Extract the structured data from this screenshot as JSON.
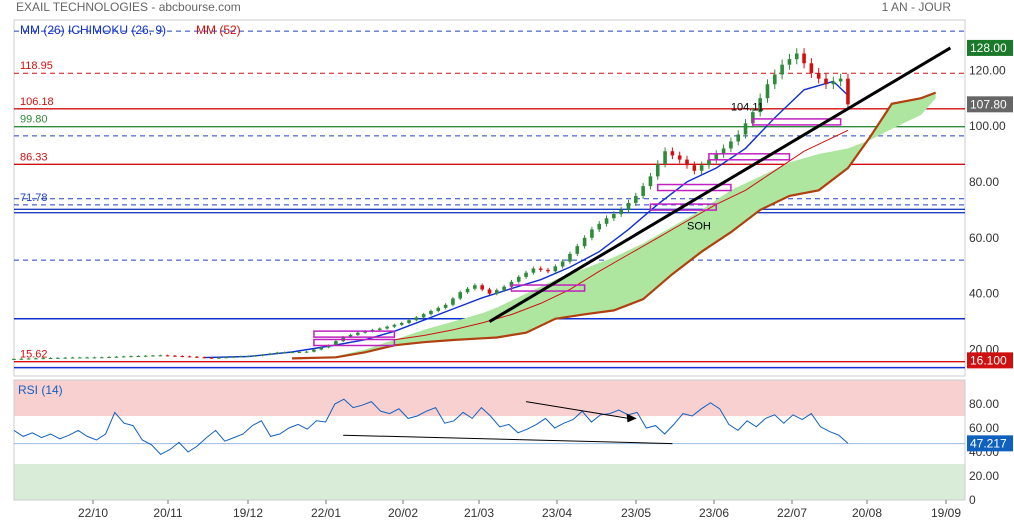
{
  "header": {
    "title": "EXAIL TECHNOLOGIES - abcbourse.com",
    "period": "1 AN - JOUR"
  },
  "colors": {
    "price_up": "#2e8b3a",
    "price_down": "#d01010",
    "ma26": "#1030d0",
    "ma52": "#d01010",
    "tenkan": "#d01010",
    "cloud": "#aee6a0",
    "cloud_edge": "#b04010",
    "rsi": "#1060c0",
    "rsi_over": "#f8d0d0",
    "rsi_under": "#d8ecd8"
  },
  "chart_data": [
    {
      "type": "line",
      "panel": "price",
      "legend": [
        "MM (26)",
        "ICHIMOKU (26, 9)",
        "MM (52)"
      ],
      "y_ticks": [
        "120.00",
        "100.00",
        "80.00",
        "60.00",
        "40.00",
        "20.00"
      ],
      "y_tick_values": [
        120,
        100,
        80,
        60,
        40,
        20
      ],
      "ylim": [
        10.5,
        138
      ],
      "x_ticks": [
        "22/10",
        "20/11",
        "19/12",
        "22/01",
        "20/02",
        "21/03",
        "23/04",
        "23/05",
        "23/06",
        "22/07",
        "20/08",
        "19/09"
      ],
      "close_points": [
        [
          0,
          16.6
        ],
        [
          4,
          16.9
        ],
        [
          8,
          17.1
        ],
        [
          12,
          17.2
        ],
        [
          16,
          17.6
        ],
        [
          20,
          17.9
        ],
        [
          24,
          17.4
        ],
        [
          27,
          16.9
        ],
        [
          30,
          17.4
        ],
        [
          33,
          17.8
        ],
        [
          36,
          18.9
        ],
        [
          40,
          19.2
        ],
        [
          43,
          21.5
        ],
        [
          45,
          24.5
        ],
        [
          47,
          26
        ],
        [
          50,
          27.5
        ],
        [
          53,
          29.5
        ],
        [
          55,
          31.5
        ],
        [
          57,
          33.8
        ],
        [
          59,
          36
        ],
        [
          61,
          40.5
        ],
        [
          63,
          43
        ],
        [
          65,
          40
        ],
        [
          67,
          42.5
        ],
        [
          69,
          46
        ],
        [
          71,
          49
        ],
        [
          73,
          48
        ],
        [
          75,
          51.5
        ],
        [
          77,
          57
        ],
        [
          79,
          63
        ],
        [
          81,
          67
        ],
        [
          83,
          70
        ],
        [
          85,
          75
        ],
        [
          87,
          82
        ],
        [
          89,
          91
        ],
        [
          91,
          88
        ],
        [
          93,
          84
        ],
        [
          95,
          88
        ],
        [
          97,
          92
        ],
        [
          99,
          97
        ],
        [
          101,
          105
        ],
        [
          103,
          115
        ],
        [
          105,
          122
        ],
        [
          107,
          126
        ],
        [
          109,
          119
        ],
        [
          111,
          115
        ],
        [
          113,
          117
        ],
        [
          114,
          107.8
        ]
      ],
      "ma26_points": [
        [
          26,
          17.1
        ],
        [
          32,
          17.5
        ],
        [
          38,
          19.1
        ],
        [
          44,
          21.6
        ],
        [
          48,
          23.5
        ],
        [
          52,
          26.5
        ],
        [
          56,
          30.5
        ],
        [
          60,
          34.5
        ],
        [
          64,
          38.5
        ],
        [
          68,
          41.8
        ],
        [
          72,
          45
        ],
        [
          76,
          49.5
        ],
        [
          80,
          55
        ],
        [
          84,
          63
        ],
        [
          88,
          72
        ],
        [
          92,
          80
        ],
        [
          96,
          85
        ],
        [
          100,
          92
        ],
        [
          104,
          103
        ],
        [
          108,
          113
        ],
        [
          112,
          116
        ],
        [
          114,
          111
        ]
      ],
      "ma52_points": [
        [
          52,
          23.5
        ],
        [
          56,
          25
        ],
        [
          60,
          27
        ],
        [
          64,
          29.5
        ],
        [
          68,
          32.5
        ],
        [
          72,
          36.5
        ],
        [
          76,
          41.5
        ],
        [
          80,
          48
        ],
        [
          84,
          54
        ],
        [
          88,
          60
        ],
        [
          92,
          66
        ],
        [
          96,
          72
        ],
        [
          100,
          77
        ],
        [
          104,
          84
        ],
        [
          108,
          91
        ],
        [
          112,
          96
        ],
        [
          114,
          98.5
        ]
      ],
      "cloud_a": [
        [
          38,
          16.8
        ],
        [
          44,
          17.2
        ],
        [
          48,
          19
        ],
        [
          52,
          21.5
        ],
        [
          56,
          22.6
        ],
        [
          60,
          23.4
        ],
        [
          64,
          24
        ],
        [
          66,
          24.3
        ],
        [
          70,
          26
        ],
        [
          74,
          31
        ],
        [
          78,
          32.6
        ],
        [
          82,
          34
        ],
        [
          86,
          38
        ],
        [
          90,
          47
        ],
        [
          94,
          55
        ],
        [
          98,
          62
        ],
        [
          102,
          70
        ],
        [
          106,
          75
        ],
        [
          110,
          77
        ],
        [
          114,
          85
        ],
        [
          117,
          96
        ],
        [
          120,
          108
        ],
        [
          124,
          110
        ],
        [
          126,
          112
        ]
      ],
      "cloud_b": [
        [
          38,
          16.8
        ],
        [
          44,
          17.6
        ],
        [
          48,
          20
        ],
        [
          52,
          23.5
        ],
        [
          56,
          27
        ],
        [
          60,
          30
        ],
        [
          64,
          33
        ],
        [
          66,
          35
        ],
        [
          70,
          40
        ],
        [
          74,
          45
        ],
        [
          78,
          49
        ],
        [
          82,
          53
        ],
        [
          86,
          58
        ],
        [
          90,
          64
        ],
        [
          94,
          70
        ],
        [
          98,
          77
        ],
        [
          102,
          82
        ],
        [
          106,
          87
        ],
        [
          110,
          90
        ],
        [
          114,
          92
        ],
        [
          117,
          95
        ],
        [
          120,
          99
        ],
        [
          124,
          104
        ],
        [
          126,
          110
        ]
      ],
      "cloud_edge_points": [
        [
          38,
          16.8
        ],
        [
          44,
          17.2
        ],
        [
          48,
          19
        ],
        [
          52,
          21.5
        ],
        [
          56,
          22.6
        ],
        [
          60,
          23.4
        ],
        [
          64,
          24
        ],
        [
          66,
          24.3
        ],
        [
          70,
          26
        ],
        [
          74,
          31
        ],
        [
          78,
          32.6
        ],
        [
          82,
          34
        ],
        [
          86,
          38
        ],
        [
          90,
          47
        ],
        [
          94,
          55
        ],
        [
          98,
          62
        ],
        [
          102,
          70
        ],
        [
          106,
          75
        ],
        [
          110,
          77
        ],
        [
          114,
          85
        ],
        [
          117,
          96
        ],
        [
          120,
          108
        ],
        [
          124,
          110
        ],
        [
          126,
          112
        ]
      ],
      "trendline": [
        [
          65,
          30
        ],
        [
          128,
          128
        ]
      ],
      "levels": [
        {
          "value": 118.95,
          "label": "118.95",
          "color": "#d01010",
          "style": "dashed"
        },
        {
          "value": 106.18,
          "label": "106.18",
          "color": "#d01010",
          "style": "solid"
        },
        {
          "value": 99.8,
          "label": "99.80",
          "color": "#2e8b3a",
          "style": "solid"
        },
        {
          "value": 86.33,
          "label": "86.33",
          "color": "#d01010",
          "style": "solid"
        },
        {
          "value": 71.78,
          "label": "71.78",
          "color": "#2040c0",
          "style": "dashed"
        },
        {
          "value": 15.62,
          "label": "15.62",
          "color": "#d01010",
          "style": "solid"
        }
      ],
      "extra_lines": [
        {
          "value": 134,
          "color": "#2040c0",
          "style": "dashed"
        },
        {
          "value": 96.5,
          "color": "#2040c0",
          "style": "dashed"
        },
        {
          "value": 74,
          "color": "#2040c0",
          "style": "dashed"
        },
        {
          "value": 70.2,
          "color": "#2040c0",
          "style": "solid"
        },
        {
          "value": 69,
          "color": "#2040c0",
          "style": "solid"
        },
        {
          "value": 52,
          "color": "#2040c0",
          "style": "dashed"
        },
        {
          "value": 31,
          "color": "#1030d0",
          "style": "solid"
        },
        {
          "value": 13.5,
          "color": "#1030d0",
          "style": "solid"
        }
      ],
      "annotations": [
        {
          "text": "104.11",
          "x": 98,
          "y": 105.5
        },
        {
          "text": "SOH",
          "x": 92,
          "y": 63
        }
      ],
      "zones": [
        {
          "x0": 41,
          "x1": 52,
          "y": 25.5
        },
        {
          "x0": 41,
          "x1": 52,
          "y": 22.5
        },
        {
          "x0": 68,
          "x1": 78,
          "y": 42
        },
        {
          "x0": 87,
          "x1": 96,
          "y": 71
        },
        {
          "x0": 88,
          "x1": 98,
          "y": 78
        },
        {
          "x0": 95,
          "x1": 106,
          "y": 89
        },
        {
          "x0": 101,
          "x1": 113,
          "y": 101.5
        }
      ],
      "price_tags": [
        {
          "value": 128,
          "label": "128.00",
          "bg": "#1a7a2a"
        },
        {
          "value": 107.8,
          "label": "107.80",
          "bg": "#666666"
        },
        {
          "value": 16.1,
          "label": "16.100",
          "bg": "#d01010"
        }
      ]
    },
    {
      "type": "line",
      "panel": "rsi",
      "title": "RSI (14)",
      "y_ticks": [
        "80.00",
        "60.00",
        "40.00",
        "20.00",
        "0"
      ],
      "y_tick_values": [
        80,
        60,
        40,
        20,
        0
      ],
      "ylim": [
        0,
        100
      ],
      "zones": [
        {
          "from": 70,
          "to": 100,
          "kind": "over"
        },
        {
          "from": 0,
          "to": 30,
          "kind": "under"
        }
      ],
      "values": [
        58,
        53,
        56,
        52,
        55,
        51,
        54,
        58,
        53,
        50,
        55,
        73,
        64,
        62,
        50,
        46,
        38,
        42,
        48,
        40,
        45,
        52,
        58,
        49,
        52,
        55,
        62,
        66,
        53,
        55,
        60,
        63,
        59,
        66,
        65,
        80,
        84,
        77,
        79,
        82,
        74,
        72,
        76,
        68,
        70,
        74,
        77,
        64,
        66,
        73,
        68,
        77,
        70,
        61,
        63,
        56,
        59,
        63,
        68,
        60,
        64,
        67,
        74,
        65,
        71,
        72,
        75,
        71,
        73,
        60,
        62,
        55,
        63,
        72,
        70,
        76,
        81,
        76,
        63,
        58,
        66,
        61,
        68,
        71,
        64,
        71,
        67,
        72,
        61,
        57,
        54,
        47.2
      ],
      "divergence_top": [
        [
          70,
          82
        ],
        [
          84,
          68
        ]
      ],
      "divergence_bottom": [
        [
          45,
          54
        ],
        [
          90,
          47
        ]
      ],
      "price_tag": {
        "value": 47.217,
        "label": "47.217",
        "bg": "#1060c0"
      }
    }
  ]
}
